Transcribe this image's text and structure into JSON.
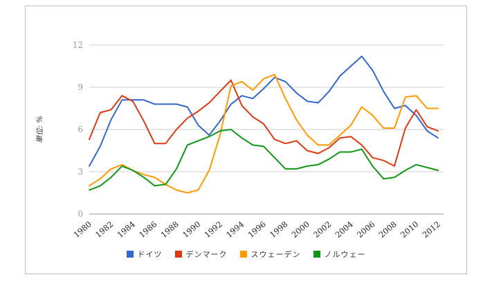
{
  "chart": {
    "unit_label": "単位: %"
  },
  "styles": {
    "grid_color": "#cccccc",
    "baseline_color": "#999999",
    "ytick_color": "#999999",
    "xtick_color": "#222222",
    "ylabel_color": "#333333",
    "frame_border_color": "#bdbdbd"
  },
  "chart_data": {
    "type": "line",
    "ylabel": "単位: %",
    "ylim": [
      0,
      12
    ],
    "yticks": [
      0,
      3,
      6,
      9,
      12
    ],
    "grid": true,
    "legend_position": "bottom",
    "x": [
      1980,
      1981,
      1982,
      1983,
      1984,
      1985,
      1986,
      1987,
      1988,
      1989,
      1990,
      1991,
      1992,
      1993,
      1994,
      1995,
      1996,
      1997,
      1998,
      1999,
      2000,
      2001,
      2002,
      2003,
      2004,
      2005,
      2006,
      2007,
      2008,
      2009,
      2010,
      2011,
      2012
    ],
    "x_tick_labels": [
      "1980",
      "1982",
      "1984",
      "1986",
      "1988",
      "1990",
      "1992",
      "1994",
      "1996",
      "1998",
      "2000",
      "2002",
      "2004",
      "2006",
      "2008",
      "2010",
      "2012"
    ],
    "series": [
      {
        "key": "germany",
        "name": "ドイツ",
        "color": "#3366cc",
        "values": [
          3.4,
          4.8,
          6.7,
          8.1,
          8.1,
          8.1,
          7.8,
          7.8,
          7.8,
          7.6,
          6.3,
          5.6,
          6.6,
          7.8,
          8.4,
          8.2,
          8.9,
          9.7,
          9.4,
          8.6,
          8.0,
          7.9,
          8.7,
          9.8,
          10.5,
          11.2,
          10.2,
          8.7,
          7.5,
          7.7,
          7.0,
          5.9,
          5.4
        ]
      },
      {
        "key": "denmark",
        "name": "デンマーク",
        "color": "#dc3912",
        "values": [
          5.3,
          7.2,
          7.4,
          8.4,
          8.0,
          6.6,
          5.0,
          5.0,
          6.0,
          6.8,
          7.3,
          7.9,
          8.7,
          9.5,
          7.7,
          6.9,
          6.4,
          5.3,
          5.0,
          5.2,
          4.5,
          4.3,
          4.7,
          5.4,
          5.5,
          4.9,
          4.0,
          3.8,
          3.4,
          6.1,
          7.4,
          6.2,
          5.9
        ]
      },
      {
        "key": "sweden",
        "name": "スウェーデン",
        "color": "#ff9900",
        "values": [
          2.0,
          2.5,
          3.2,
          3.5,
          3.1,
          2.8,
          2.6,
          2.1,
          1.7,
          1.5,
          1.7,
          3.1,
          5.6,
          9.1,
          9.4,
          8.8,
          9.6,
          9.9,
          8.2,
          6.7,
          5.6,
          4.9,
          4.9,
          5.6,
          6.3,
          7.6,
          7.0,
          6.1,
          6.1,
          8.3,
          8.4,
          7.5,
          7.5
        ]
      },
      {
        "key": "norway",
        "name": "ノルウェー",
        "color": "#109618",
        "values": [
          1.7,
          2.0,
          2.6,
          3.4,
          3.1,
          2.6,
          2.0,
          2.1,
          3.2,
          4.9,
          5.2,
          5.5,
          5.9,
          6.0,
          5.4,
          4.9,
          4.8,
          4.0,
          3.2,
          3.2,
          3.4,
          3.5,
          3.9,
          4.4,
          4.4,
          4.6,
          3.4,
          2.5,
          2.6,
          3.1,
          3.5,
          3.3,
          3.1
        ]
      }
    ]
  }
}
